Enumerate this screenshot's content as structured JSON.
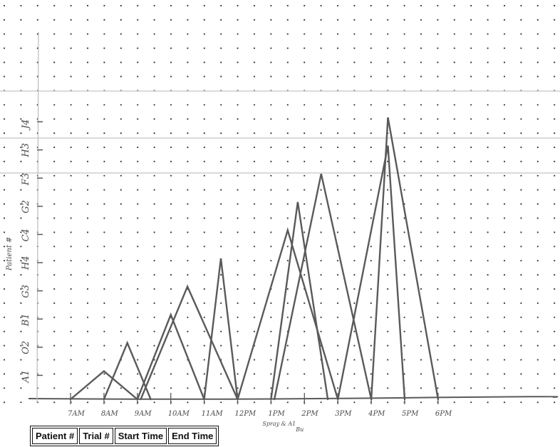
{
  "page_header": "",
  "vertical_axis_caption": "Patient #",
  "chart_data": {
    "type": "line",
    "title": "",
    "xlabel": "",
    "ylabel": "Patient #",
    "x_ticks": [
      "7AM",
      "8AM",
      "9AM",
      "10AM",
      "11AM",
      "12PM",
      "1PM",
      "2PM",
      "3PM",
      "4PM",
      "5PM",
      "6PM"
    ],
    "x_tick_notes": [
      {
        "tick": "1PM",
        "text": "Spray & A1"
      },
      {
        "tick": "2PM",
        "text": "Bu"
      }
    ],
    "y_ticks": [
      "A1",
      "O2",
      "B1",
      "G3",
      "H4",
      "C4",
      "G2",
      "F3",
      "H3",
      "J4"
    ],
    "grid": true,
    "series": [
      {
        "points": [
          [
            7,
            0
          ],
          [
            8,
            1
          ],
          [
            9,
            0
          ]
        ]
      },
      {
        "points": [
          [
            8,
            0
          ],
          [
            8.7,
            2
          ],
          [
            9.4,
            0
          ]
        ]
      },
      {
        "points": [
          [
            9,
            0
          ],
          [
            10,
            3
          ],
          [
            11,
            0
          ]
        ]
      },
      {
        "points": [
          [
            9.1,
            0
          ],
          [
            10.5,
            4
          ],
          [
            12,
            0
          ]
        ]
      },
      {
        "points": [
          [
            11,
            0
          ],
          [
            11.5,
            5
          ],
          [
            12,
            0
          ]
        ]
      },
      {
        "points": [
          [
            12,
            0
          ],
          [
            13.5,
            6
          ],
          [
            15,
            0
          ]
        ]
      },
      {
        "points": [
          [
            13,
            0
          ],
          [
            13.8,
            7
          ],
          [
            14.7,
            0
          ]
        ]
      },
      {
        "points": [
          [
            13.1,
            0
          ],
          [
            14.5,
            8
          ],
          [
            16,
            0
          ]
        ]
      },
      {
        "points": [
          [
            15,
            0
          ],
          [
            16.5,
            9
          ],
          [
            17,
            0
          ]
        ]
      },
      {
        "points": [
          [
            16,
            0
          ],
          [
            16.5,
            10
          ],
          [
            18,
            0
          ]
        ]
      }
    ]
  },
  "table": {
    "headers": [
      "Patient #",
      "Trial #",
      "Start Time",
      "End Time"
    ]
  },
  "colors": {
    "ink": "#5a5a5a",
    "dot": "#3b3b3b",
    "rule": "#cfcfcf"
  }
}
